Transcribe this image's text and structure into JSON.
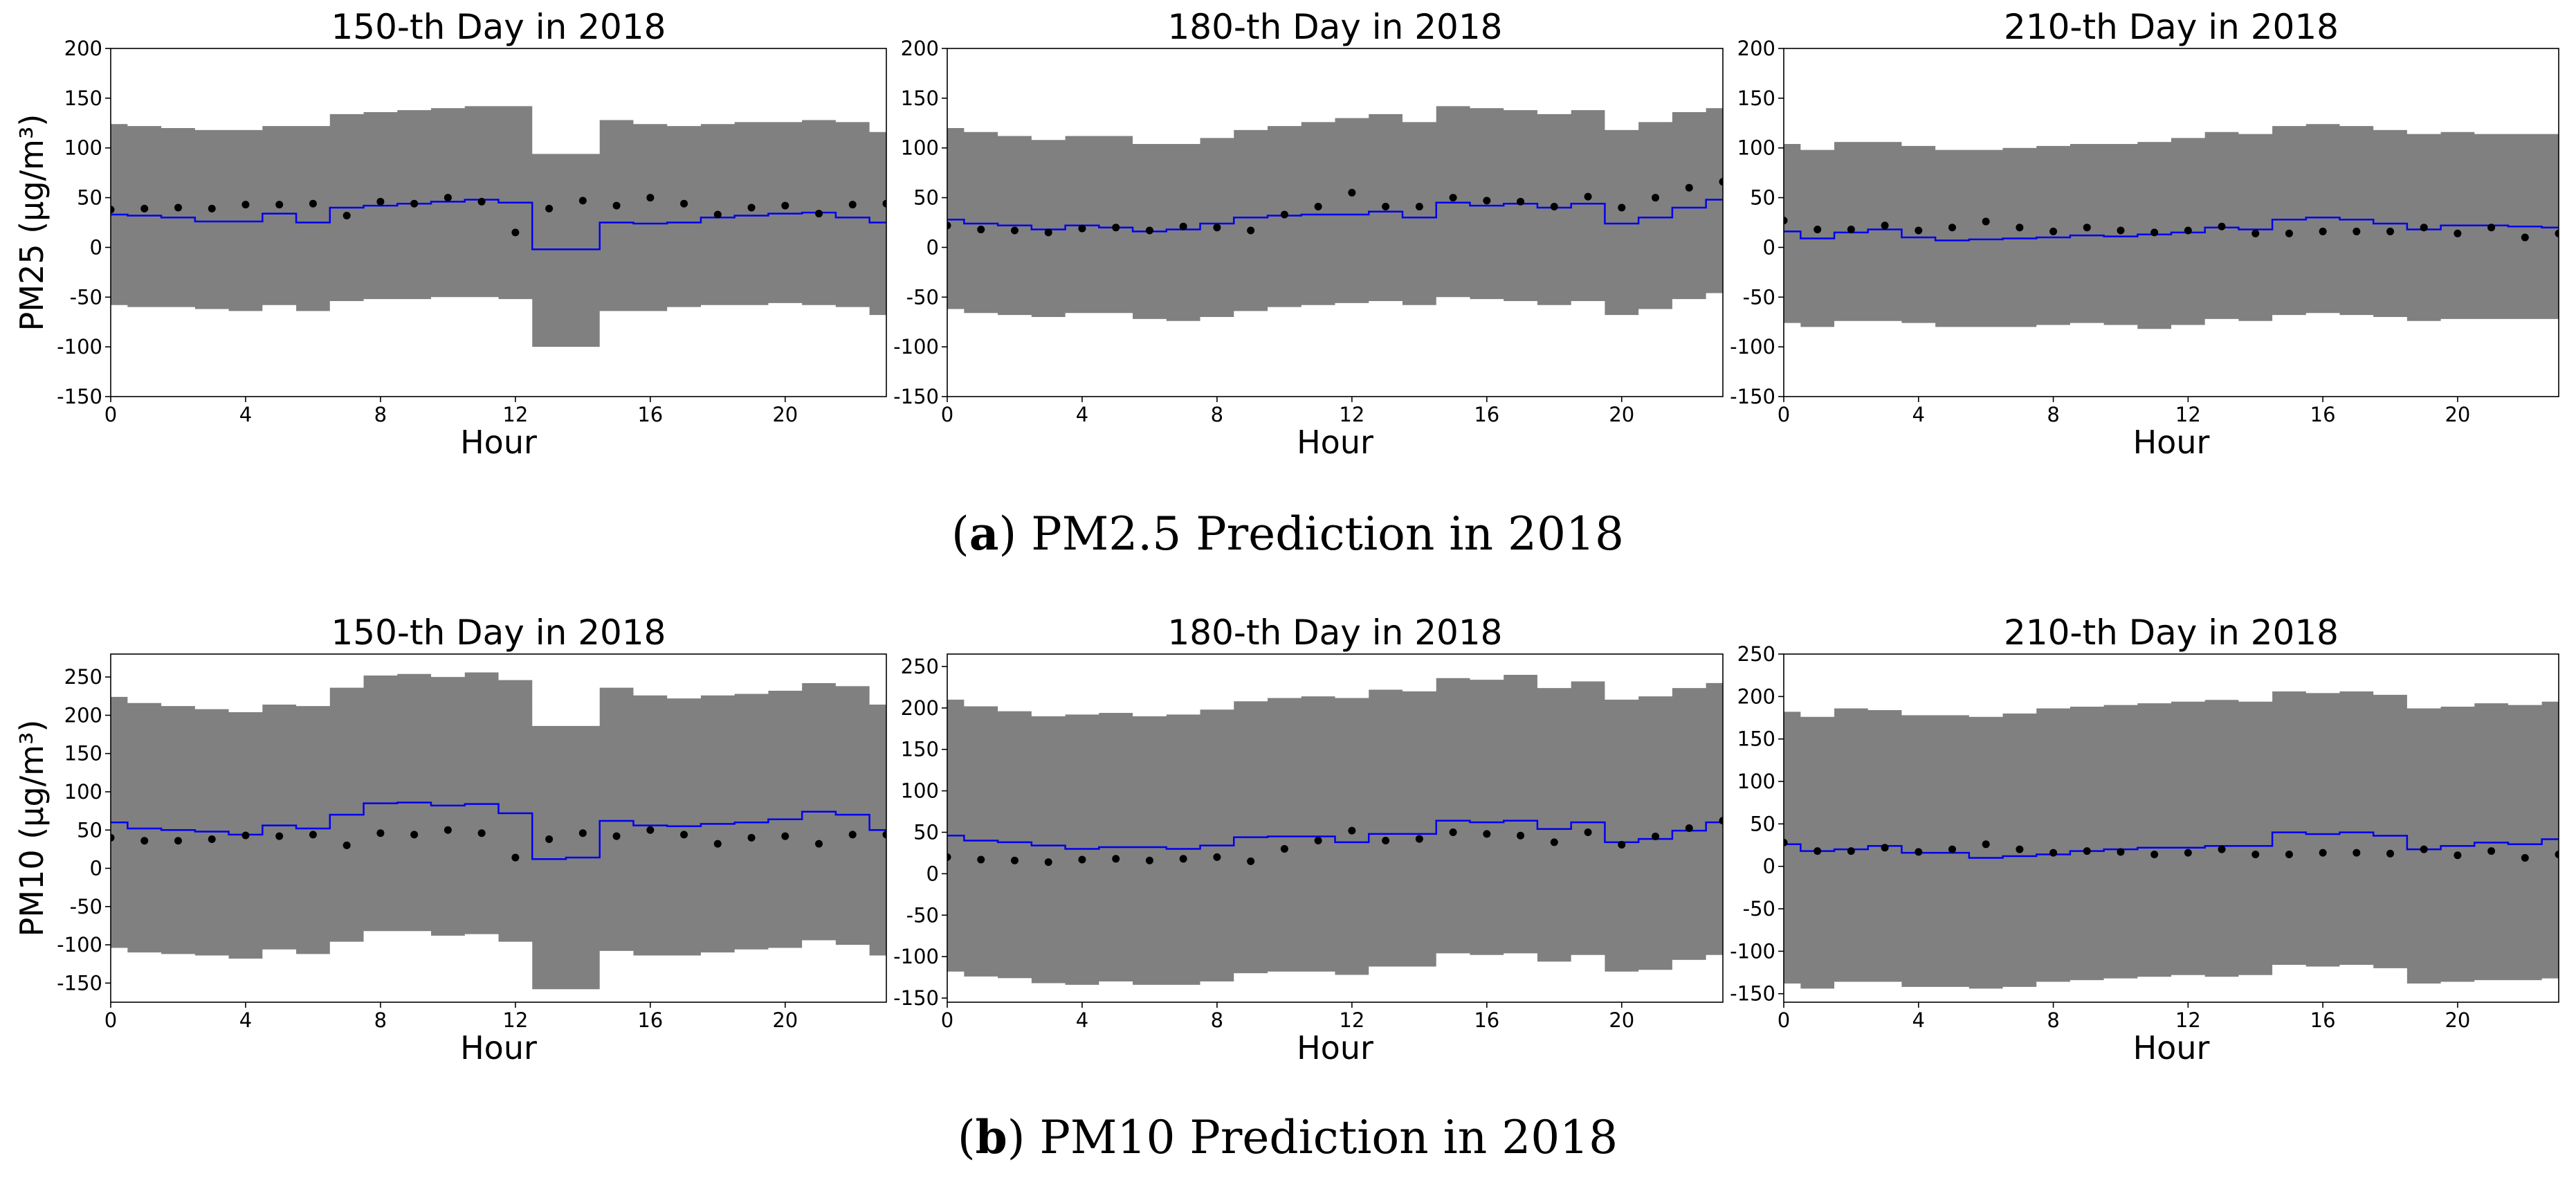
{
  "captions": {
    "a": {
      "letter": "a",
      "text": "PM2.5 Prediction in 2018"
    },
    "b": {
      "letter": "b",
      "text": "PM10 Prediction in 2018"
    }
  },
  "colors": {
    "band": "#808080",
    "line": "#0000ee",
    "points": "#000000"
  },
  "chart_data": [
    {
      "type": "line",
      "row": "a",
      "title": "150-th Day in 2018",
      "xlabel": "Hour",
      "ylabel": "PM25 (μg/m³)",
      "xlim": [
        0,
        23
      ],
      "ylim": [
        -150,
        200
      ],
      "xticks": [
        0,
        4,
        8,
        12,
        16,
        20
      ],
      "yticks": [
        -150,
        -100,
        -50,
        0,
        50,
        100,
        150,
        200
      ],
      "x": [
        0,
        1,
        2,
        3,
        4,
        5,
        6,
        7,
        8,
        9,
        10,
        11,
        12,
        13,
        14,
        15,
        16,
        17,
        18,
        19,
        20,
        21,
        22,
        23
      ],
      "series": [
        {
          "values": [
            33,
            32,
            30,
            26,
            26,
            34,
            25,
            40,
            42,
            44,
            46,
            48,
            45,
            -2,
            -2,
            25,
            24,
            25,
            30,
            32,
            34,
            35,
            30,
            25
          ]
        },
        {
          "values": [
            38,
            39,
            40,
            39,
            43,
            43,
            44,
            32,
            46,
            44,
            50,
            46,
            15,
            39,
            47,
            42,
            50,
            44,
            33,
            40,
            42,
            34,
            43,
            44
          ]
        },
        {
          "values": [
            124,
            122,
            120,
            118,
            118,
            122,
            122,
            134,
            136,
            138,
            140,
            142,
            142,
            94,
            94,
            128,
            124,
            122,
            124,
            126,
            126,
            128,
            126,
            116
          ]
        },
        {
          "values": [
            -58,
            -60,
            -60,
            -62,
            -64,
            -58,
            -64,
            -54,
            -52,
            -52,
            -50,
            -50,
            -52,
            -100,
            -100,
            -64,
            -64,
            -60,
            -58,
            -58,
            -56,
            -58,
            -60,
            -68
          ]
        }
      ]
    },
    {
      "type": "line",
      "row": "a",
      "title": "180-th Day in 2018",
      "xlabel": "Hour",
      "ylabel": "",
      "xlim": [
        0,
        23
      ],
      "ylim": [
        -150,
        200
      ],
      "xticks": [
        0,
        4,
        8,
        12,
        16,
        20
      ],
      "yticks": [
        -150,
        -100,
        -50,
        0,
        50,
        100,
        150,
        200
      ],
      "x": [
        0,
        1,
        2,
        3,
        4,
        5,
        6,
        7,
        8,
        9,
        10,
        11,
        12,
        13,
        14,
        15,
        16,
        17,
        18,
        19,
        20,
        21,
        22,
        23
      ],
      "series": [
        {
          "values": [
            28,
            24,
            22,
            18,
            22,
            20,
            16,
            18,
            24,
            30,
            32,
            33,
            33,
            36,
            30,
            45,
            42,
            44,
            40,
            44,
            24,
            30,
            40,
            48
          ]
        },
        {
          "values": [
            22,
            18,
            17,
            15,
            19,
            20,
            17,
            21,
            20,
            17,
            33,
            41,
            55,
            41,
            41,
            50,
            47,
            46,
            41,
            51,
            40,
            50,
            60,
            66
          ]
        },
        {
          "values": [
            120,
            116,
            112,
            108,
            112,
            112,
            104,
            104,
            110,
            118,
            122,
            126,
            130,
            134,
            126,
            142,
            140,
            138,
            134,
            138,
            118,
            126,
            136,
            140
          ]
        },
        {
          "values": [
            -62,
            -66,
            -68,
            -70,
            -66,
            -66,
            -72,
            -74,
            -70,
            -64,
            -60,
            -58,
            -56,
            -54,
            -58,
            -50,
            -52,
            -54,
            -58,
            -54,
            -68,
            -62,
            -52,
            -46
          ]
        }
      ]
    },
    {
      "type": "line",
      "row": "a",
      "title": "210-th Day in 2018",
      "xlabel": "Hour",
      "ylabel": "",
      "xlim": [
        0,
        23
      ],
      "ylim": [
        -150,
        200
      ],
      "xticks": [
        0,
        4,
        8,
        12,
        16,
        20
      ],
      "yticks": [
        -150,
        -100,
        -50,
        0,
        50,
        100,
        150,
        200
      ],
      "x": [
        0,
        1,
        2,
        3,
        4,
        5,
        6,
        7,
        8,
        9,
        10,
        11,
        12,
        13,
        14,
        15,
        16,
        17,
        18,
        19,
        20,
        21,
        22,
        23
      ],
      "series": [
        {
          "values": [
            16,
            9,
            15,
            18,
            10,
            7,
            8,
            9,
            10,
            12,
            11,
            13,
            15,
            20,
            18,
            28,
            30,
            28,
            24,
            18,
            22,
            22,
            21,
            20
          ]
        },
        {
          "values": [
            27,
            18,
            18,
            22,
            17,
            20,
            26,
            20,
            16,
            20,
            17,
            15,
            17,
            21,
            14,
            14,
            16,
            16,
            16,
            20,
            14,
            20,
            10,
            14
          ]
        },
        {
          "values": [
            104,
            98,
            106,
            106,
            102,
            98,
            98,
            100,
            102,
            104,
            104,
            106,
            110,
            116,
            114,
            122,
            124,
            122,
            118,
            114,
            116,
            114,
            114,
            114
          ]
        },
        {
          "values": [
            -76,
            -80,
            -74,
            -74,
            -76,
            -80,
            -80,
            -80,
            -78,
            -76,
            -78,
            -82,
            -78,
            -72,
            -74,
            -68,
            -66,
            -68,
            -70,
            -74,
            -72,
            -72,
            -72,
            -72
          ]
        }
      ]
    },
    {
      "type": "line",
      "row": "b",
      "title": "150-th Day in 2018",
      "xlabel": "Hour",
      "ylabel": "PM10 (μg/m³)",
      "xlim": [
        0,
        23
      ],
      "ylim": [
        -175,
        280
      ],
      "xticks": [
        0,
        4,
        8,
        12,
        16,
        20
      ],
      "yticks": [
        -150,
        -100,
        -50,
        0,
        50,
        100,
        150,
        200,
        250
      ],
      "x": [
        0,
        1,
        2,
        3,
        4,
        5,
        6,
        7,
        8,
        9,
        10,
        11,
        12,
        13,
        14,
        15,
        16,
        17,
        18,
        19,
        20,
        21,
        22,
        23
      ],
      "series": [
        {
          "values": [
            60,
            52,
            50,
            48,
            44,
            56,
            52,
            70,
            85,
            86,
            82,
            84,
            72,
            12,
            14,
            62,
            56,
            55,
            58,
            60,
            64,
            74,
            70,
            50
          ]
        },
        {
          "values": [
            40,
            36,
            36,
            38,
            43,
            42,
            44,
            30,
            46,
            44,
            50,
            46,
            14,
            38,
            46,
            42,
            50,
            44,
            32,
            40,
            42,
            32,
            44,
            44
          ]
        },
        {
          "values": [
            224,
            216,
            212,
            208,
            204,
            214,
            212,
            236,
            252,
            254,
            250,
            256,
            246,
            186,
            186,
            236,
            226,
            222,
            226,
            228,
            232,
            242,
            238,
            214
          ]
        },
        {
          "values": [
            -104,
            -110,
            -112,
            -114,
            -118,
            -106,
            -112,
            -96,
            -82,
            -82,
            -88,
            -86,
            -96,
            -158,
            -158,
            -108,
            -114,
            -114,
            -110,
            -106,
            -104,
            -94,
            -100,
            -114
          ]
        }
      ]
    },
    {
      "type": "line",
      "row": "b",
      "title": "180-th Day in 2018",
      "xlabel": "Hour",
      "ylabel": "",
      "xlim": [
        0,
        23
      ],
      "ylim": [
        -155,
        265
      ],
      "xticks": [
        0,
        4,
        8,
        12,
        16,
        20
      ],
      "yticks": [
        -150,
        -100,
        -50,
        0,
        50,
        100,
        150,
        200,
        250
      ],
      "x": [
        0,
        1,
        2,
        3,
        4,
        5,
        6,
        7,
        8,
        9,
        10,
        11,
        12,
        13,
        14,
        15,
        16,
        17,
        18,
        19,
        20,
        21,
        22,
        23
      ],
      "series": [
        {
          "values": [
            46,
            40,
            38,
            34,
            30,
            32,
            32,
            30,
            34,
            44,
            45,
            45,
            38,
            48,
            48,
            64,
            62,
            64,
            54,
            62,
            38,
            42,
            52,
            62
          ]
        },
        {
          "values": [
            20,
            17,
            16,
            14,
            17,
            18,
            16,
            18,
            20,
            15,
            30,
            40,
            52,
            40,
            42,
            50,
            48,
            46,
            38,
            50,
            35,
            45,
            55,
            64
          ]
        },
        {
          "values": [
            210,
            202,
            196,
            190,
            192,
            194,
            190,
            192,
            198,
            208,
            212,
            214,
            212,
            222,
            220,
            236,
            234,
            240,
            224,
            232,
            210,
            214,
            224,
            230
          ]
        },
        {
          "values": [
            -118,
            -124,
            -126,
            -132,
            -134,
            -130,
            -134,
            -134,
            -130,
            -120,
            -118,
            -118,
            -122,
            -112,
            -112,
            -96,
            -98,
            -96,
            -106,
            -98,
            -118,
            -116,
            -104,
            -98
          ]
        }
      ]
    },
    {
      "type": "line",
      "row": "b",
      "title": "210-th Day in 2018",
      "xlabel": "Hour",
      "ylabel": "",
      "xlim": [
        0,
        23
      ],
      "ylim": [
        -160,
        250
      ],
      "xticks": [
        0,
        4,
        8,
        12,
        16,
        20
      ],
      "yticks": [
        -150,
        -100,
        -50,
        0,
        50,
        100,
        150,
        200,
        250
      ],
      "x": [
        0,
        1,
        2,
        3,
        4,
        5,
        6,
        7,
        8,
        9,
        10,
        11,
        12,
        13,
        14,
        15,
        16,
        17,
        18,
        19,
        20,
        21,
        22,
        23
      ],
      "series": [
        {
          "values": [
            26,
            18,
            20,
            24,
            16,
            16,
            10,
            12,
            14,
            18,
            20,
            22,
            22,
            24,
            24,
            40,
            38,
            40,
            36,
            20,
            24,
            28,
            26,
            32
          ]
        },
        {
          "values": [
            28,
            18,
            18,
            22,
            17,
            20,
            26,
            20,
            16,
            18,
            17,
            14,
            16,
            20,
            14,
            14,
            16,
            16,
            15,
            20,
            13,
            18,
            10,
            14
          ]
        },
        {
          "values": [
            182,
            176,
            186,
            184,
            178,
            178,
            176,
            180,
            186,
            188,
            190,
            192,
            194,
            196,
            194,
            206,
            204,
            206,
            202,
            186,
            188,
            192,
            190,
            194
          ]
        },
        {
          "values": [
            -138,
            -144,
            -136,
            -136,
            -142,
            -142,
            -144,
            -142,
            -136,
            -134,
            -132,
            -130,
            -128,
            -130,
            -128,
            -116,
            -118,
            -116,
            -120,
            -138,
            -136,
            -134,
            -134,
            -132
          ]
        }
      ]
    }
  ]
}
